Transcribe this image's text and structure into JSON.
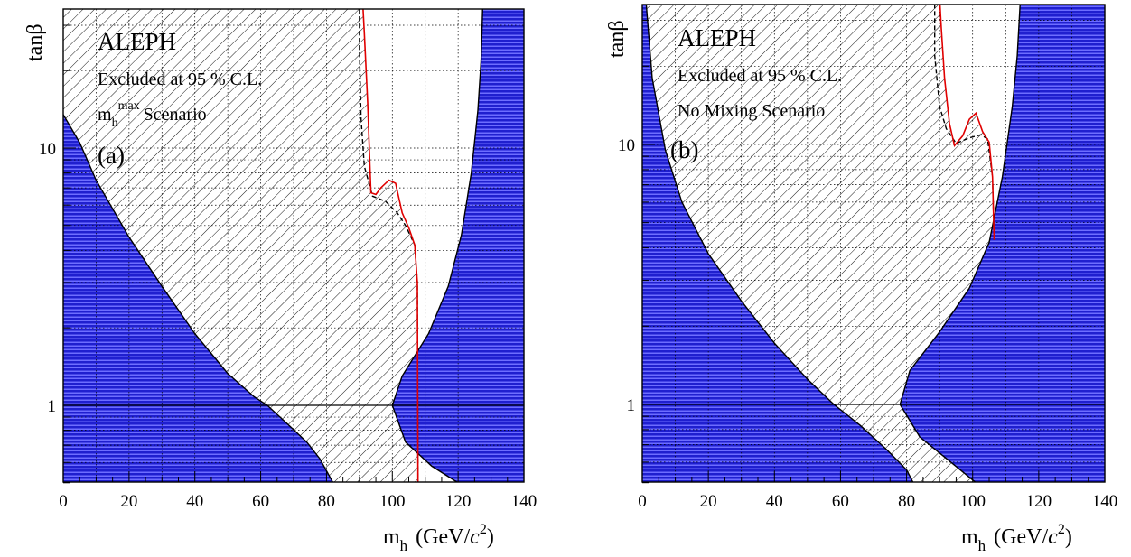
{
  "colors": {
    "theory_excluded": "#1f1fcf",
    "theory_stripe": "#6d6dff",
    "hatch": "#000000",
    "observed": "#e00000",
    "expected": "#000000",
    "grid": "#000000"
  },
  "chart_data": [
    {
      "type": "area",
      "experiment": "ALEPH",
      "note": "Excluded at 95 % C.L.",
      "scenario": {
        "base": "m",
        "sub": "h",
        "sup": "max",
        "text": "Scenario"
      },
      "panel_tag": "(a)",
      "xlabel": {
        "base": "m",
        "sub": "h",
        "unit_open": "(GeV/",
        "unit_c": "c",
        "unit_pow": "2",
        "unit_close": ")"
      },
      "ylabel": "tanβ",
      "xlim": [
        0,
        140
      ],
      "ylim": [
        0.5,
        37
      ],
      "yscale": "log",
      "xticks": [
        0,
        20,
        40,
        60,
        80,
        100,
        120,
        140
      ],
      "xtick_labels": [
        "0",
        "20",
        "40",
        "60",
        "80",
        "100",
        "120",
        "140"
      ],
      "yticks": [
        1,
        10
      ],
      "ytick_labels": [
        "1",
        "10"
      ],
      "grid": true,
      "reference_line_y": 1,
      "theory_left_boundary": [
        [
          0,
          13.5
        ],
        [
          5,
          10.5
        ],
        [
          10,
          7.5
        ],
        [
          20,
          4.5
        ],
        [
          30,
          2.9
        ],
        [
          40,
          1.9
        ],
        [
          50,
          1.33
        ],
        [
          58,
          1.08
        ],
        [
          62,
          1.0
        ],
        [
          68,
          0.85
        ],
        [
          74,
          0.72
        ],
        [
          78,
          0.62
        ],
        [
          82,
          0.5
        ]
      ],
      "theory_right_boundary": [
        [
          120,
          0.5
        ],
        [
          112,
          0.58
        ],
        [
          104,
          0.72
        ],
        [
          100,
          1.0
        ],
        [
          103,
          1.3
        ],
        [
          111,
          1.9
        ],
        [
          117,
          2.9
        ],
        [
          121,
          4.6
        ],
        [
          124,
          8.0
        ],
        [
          126,
          14
        ],
        [
          127,
          22
        ],
        [
          127.5,
          37
        ]
      ],
      "observed_limit": [
        [
          91,
          37
        ],
        [
          91.5,
          28
        ],
        [
          92.5,
          15
        ],
        [
          93.5,
          6.7
        ],
        [
          95,
          6.6
        ],
        [
          96.5,
          7.0
        ],
        [
          99,
          7.5
        ],
        [
          101,
          7.3
        ],
        [
          103,
          5.6
        ],
        [
          105,
          4.9
        ],
        [
          106.8,
          4.2
        ],
        [
          107.6,
          3.0
        ],
        [
          107.8,
          0.5
        ]
      ],
      "expected_limit": [
        [
          90,
          37
        ],
        [
          90,
          24
        ],
        [
          90.5,
          13
        ],
        [
          91.5,
          8.5
        ],
        [
          94,
          6.5
        ],
        [
          98,
          6.2
        ],
        [
          101.5,
          5.6
        ],
        [
          104,
          5.0
        ],
        [
          106.8,
          4.2
        ],
        [
          107.6,
          3.0
        ],
        [
          107.8,
          0.5
        ]
      ]
    },
    {
      "type": "area",
      "experiment": "ALEPH",
      "note": "Excluded at 95 % C.L.",
      "scenario": {
        "base": "No Mixing Scenario",
        "sub": "",
        "sup": "",
        "text": ""
      },
      "panel_tag": "(b)",
      "xlabel": {
        "base": "m",
        "sub": "h",
        "unit_open": "(GeV/",
        "unit_c": "c",
        "unit_pow": "2",
        "unit_close": ")"
      },
      "ylabel": "tanβ",
      "xlim": [
        0,
        140
      ],
      "ylim": [
        0.5,
        37
      ],
      "yscale": "log",
      "xticks": [
        0,
        20,
        40,
        60,
        80,
        100,
        120,
        140
      ],
      "xtick_labels": [
        "0",
        "20",
        "40",
        "60",
        "80",
        "100",
        "120",
        "140"
      ],
      "yticks": [
        1,
        10
      ],
      "ytick_labels": [
        "1",
        "10"
      ],
      "grid": true,
      "reference_line_y": 1,
      "theory_left_boundary": [
        [
          1,
          37
        ],
        [
          3,
          18
        ],
        [
          7,
          9.5
        ],
        [
          12,
          6
        ],
        [
          20,
          3.8
        ],
        [
          30,
          2.5
        ],
        [
          40,
          1.72
        ],
        [
          50,
          1.25
        ],
        [
          58,
          1.0
        ],
        [
          66,
          0.83
        ],
        [
          74,
          0.67
        ],
        [
          80,
          0.56
        ],
        [
          82,
          0.5
        ]
      ],
      "theory_right_boundary": [
        [
          101,
          0.5
        ],
        [
          92,
          0.62
        ],
        [
          84,
          0.75
        ],
        [
          78,
          1.0
        ],
        [
          81,
          1.35
        ],
        [
          90,
          1.9
        ],
        [
          99,
          2.8
        ],
        [
          105,
          4.2
        ],
        [
          109,
          7.5
        ],
        [
          112,
          14
        ],
        [
          113.5,
          22
        ],
        [
          114.5,
          37
        ]
      ],
      "observed_limit": [
        [
          90,
          37
        ],
        [
          90.5,
          28
        ],
        [
          91.5,
          18
        ],
        [
          93,
          12
        ],
        [
          94.5,
          9.9
        ],
        [
          97,
          10.8
        ],
        [
          99,
          12.5
        ],
        [
          101,
          13.2
        ],
        [
          103,
          11.2
        ],
        [
          105,
          10.2
        ],
        [
          106,
          7.5
        ],
        [
          106.5,
          4.3
        ]
      ],
      "expected_limit": [
        [
          88.5,
          37
        ],
        [
          88.5,
          22
        ],
        [
          90,
          14
        ],
        [
          92,
          11.5
        ],
        [
          95,
          10.1
        ],
        [
          99,
          10.6
        ],
        [
          102.5,
          10.9
        ],
        [
          104.5,
          10.5
        ],
        [
          106,
          7.5
        ],
        [
          106.5,
          4.3
        ]
      ]
    }
  ]
}
